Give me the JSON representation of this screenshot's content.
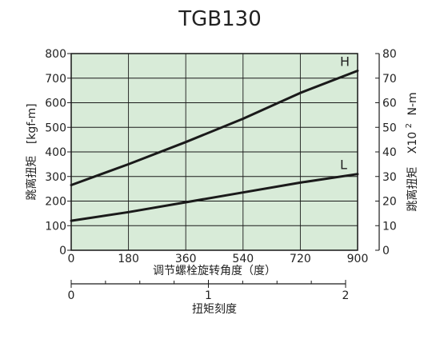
{
  "chart_data": {
    "type": "line",
    "title": "TGB130",
    "xlabel": "调节螺栓旋转角度（度）",
    "xlim": [
      0,
      900
    ],
    "x_ticks": [
      0,
      180,
      360,
      540,
      720,
      900
    ],
    "ylim": [
      0,
      800
    ],
    "y_ticks": [
      0,
      100,
      200,
      300,
      400,
      500,
      600,
      700,
      800
    ],
    "ylabel_left": "跳离扭矩",
    "ylabel_left_unit": "[kgf-m]",
    "ylim_right": [
      0,
      80
    ],
    "y_ticks_right": [
      0,
      10,
      20,
      30,
      40,
      50,
      60,
      70,
      80
    ],
    "ylabel_right": "跳离扭矩",
    "ylabel_right_unit": "X10",
    "ylabel_right_exp": "2",
    "ylabel_right_unit2": "N-m",
    "secondary_axis": {
      "label": "扭矩刻度",
      "range": [
        0,
        2
      ],
      "ticks": [
        0,
        1,
        2
      ]
    },
    "grid": true,
    "plot_background": "#d8ebd8",
    "line_color": "#1a1a1a",
    "series": [
      {
        "name": "H",
        "x": [
          0,
          180,
          360,
          540,
          720,
          900
        ],
        "values": [
          265,
          350,
          440,
          535,
          640,
          730
        ]
      },
      {
        "name": "L",
        "x": [
          0,
          180,
          360,
          540,
          720,
          900
        ],
        "values": [
          120,
          155,
          195,
          235,
          275,
          310
        ]
      }
    ]
  }
}
